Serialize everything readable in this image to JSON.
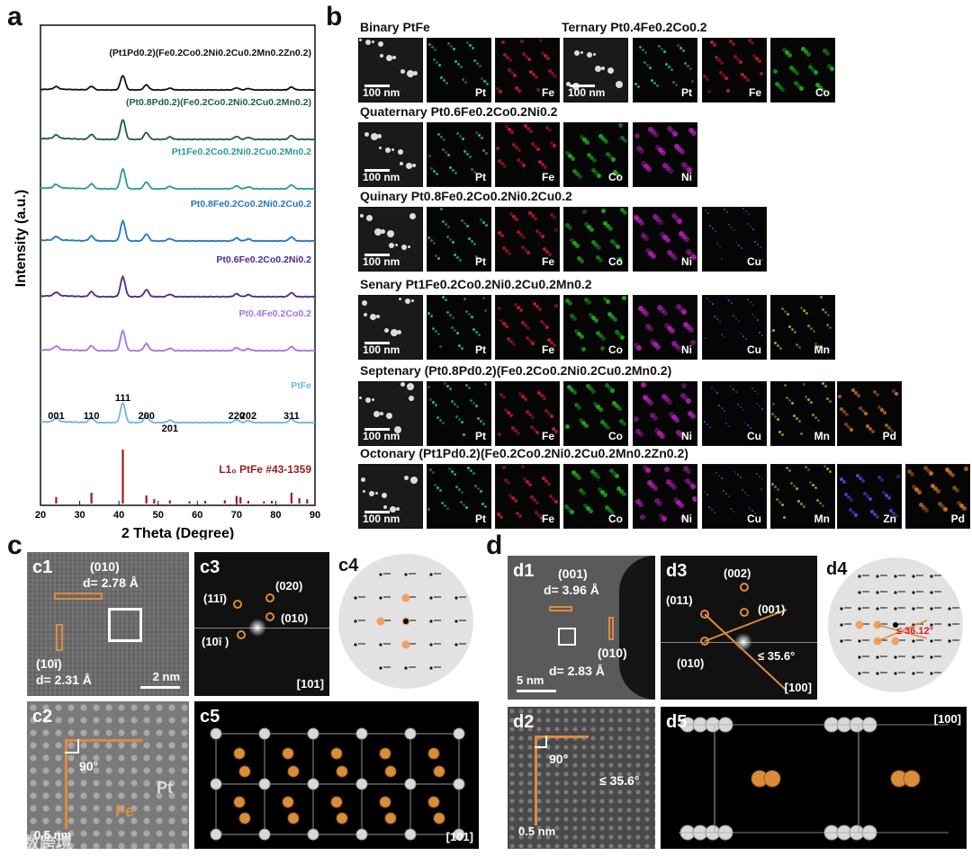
{
  "panels": {
    "a": "a",
    "b": "b",
    "c": "c",
    "d": "d"
  },
  "chart_data": {
    "type": "line",
    "xlabel": "2 Theta (Degree)",
    "ylabel": "Intensity (a.u.)",
    "xlim": [
      20,
      90
    ],
    "x_ticks": [
      "20",
      "30",
      "40",
      "50",
      "60",
      "70",
      "80",
      "90"
    ],
    "series": [
      {
        "name": "(Pt1Pd0.2)(Fe0.2Co0.2Ni0.2Cu0.2Mn0.2Zn0.2)",
        "color": "#111111"
      },
      {
        "name": "(Pt0.8Pd0.2)(Fe0.2Co0.2Ni0.2Cu0.2Mn0.2)",
        "color": "#1f5c4a"
      },
      {
        "name": "Pt1Fe0.2Co0.2Ni0.2Cu0.2Mn0.2",
        "color": "#2a9d8f"
      },
      {
        "name": "Pt0.8Fe0.2Co0.2Ni0.2Cu0.2",
        "color": "#2176c7"
      },
      {
        "name": "Pt0.6Fe0.2Co0.2Ni0.2",
        "color": "#4b2a8c"
      },
      {
        "name": "Pt0.4Fe0.2Co0.2",
        "color": "#a873e0"
      },
      {
        "name": "PtFe",
        "color": "#6fb3e6"
      }
    ],
    "peaks": [
      {
        "label": "001",
        "x": 24
      },
      {
        "label": "110",
        "x": 33
      },
      {
        "label": "111",
        "x": 41
      },
      {
        "label": "200",
        "x": 47
      },
      {
        "label": "201",
        "x": 53
      },
      {
        "label": "220",
        "x": 70
      },
      {
        "label": "202",
        "x": 73
      },
      {
        "label": "311",
        "x": 84
      }
    ],
    "reference": {
      "label": "L1₀ PtFe #43-1359",
      "color": "#9b1c1c",
      "x": [
        24,
        33,
        41,
        47,
        49,
        53,
        58,
        62,
        67,
        70,
        71,
        73,
        77,
        79,
        84,
        86,
        88
      ],
      "y": [
        0.12,
        0.2,
        1.0,
        0.15,
        0.08,
        0.06,
        0.04,
        0.05,
        0.06,
        0.14,
        0.12,
        0.05,
        0.04,
        0.05,
        0.2,
        0.1,
        0.08
      ]
    }
  },
  "rows": [
    {
      "title": "Binary PtFe",
      "scale": "100 nm",
      "elements": [
        "Pt",
        "Fe"
      ]
    },
    {
      "title": "Ternary Pt0.4Fe0.2Co0.2",
      "scale": "100 nm",
      "elements": [
        "Pt",
        "Fe",
        "Co"
      ]
    },
    {
      "title": "Quaternary Pt0.6Fe0.2Co0.2Ni0.2",
      "scale": "100 nm",
      "elements": [
        "Pt",
        "Fe",
        "Co",
        "Ni"
      ]
    },
    {
      "title": "Quinary Pt0.8Fe0.2Co0.2Ni0.2Cu0.2",
      "scale": "100 nm",
      "elements": [
        "Pt",
        "Fe",
        "Co",
        "Ni",
        "Cu"
      ]
    },
    {
      "title": "Senary Pt1Fe0.2Co0.2Ni0.2Cu0.2Mn0.2",
      "scale": "100 nm",
      "elements": [
        "Pt",
        "Fe",
        "Co",
        "Ni",
        "Cu",
        "Mn"
      ]
    },
    {
      "title": "Septenary (Pt0.8Pd0.2)(Fe0.2Co0.2Ni0.2Cu0.2Mn0.2)",
      "scale": "100 nm",
      "elements": [
        "Pt",
        "Fe",
        "Co",
        "Ni",
        "Cu",
        "Mn",
        "Pd"
      ]
    },
    {
      "title": "Octonary (Pt1Pd0.2)(Fe0.2Co0.2Ni0.2Cu0.2Mn0.2Zn0.2)",
      "scale": "100 nm",
      "elements": [
        "Pt",
        "Fe",
        "Co",
        "Ni",
        "Cu",
        "Mn",
        "Zn",
        "Pd"
      ]
    }
  ],
  "element_colors": {
    "Pt": "#2fd0d0",
    "Fe": "#e02020",
    "Co": "#20c020",
    "Ni": "#c020c0",
    "Cu": "#2080ff",
    "Mn": "#c8c820",
    "Zn": "#8040ff",
    "Pd": "#e08020"
  },
  "c": {
    "c1": {
      "label": "c1",
      "plane1": "(010)",
      "d1": "d= 2.78 Å",
      "plane2": "(10ī)",
      "d2": "d= 2.31 Å",
      "scale": "2 nm"
    },
    "c2": {
      "label": "c2",
      "angle": "90°",
      "pt": "Pt",
      "fe": "Fe",
      "scale": "0.5 nm"
    },
    "c3": {
      "label": "c3",
      "spot1": "(11ī)",
      "spot2": "(020)",
      "spot3": "(010)",
      "spot4": "(10ī )",
      "axis": "[101]"
    },
    "c4": {
      "label": "c4"
    },
    "c5": {
      "label": "c5",
      "axis": "[101]"
    }
  },
  "d": {
    "d1": {
      "label": "d1",
      "plane1": "(001)",
      "d1": "d= 3.96 Å",
      "plane2": "(010)",
      "d2": "d= 2.83 Å",
      "scale": "5 nm"
    },
    "d2": {
      "label": "d2",
      "angle": "90°",
      "angle2": "≤ 35.6°",
      "scale": "0.5 nm"
    },
    "d3": {
      "label": "d3",
      "spot1": "(002)",
      "spot2": "(011)",
      "spot3": "(001)",
      "spot4": "(010)",
      "angle": "≤ 35.6°",
      "axis": "[100]"
    },
    "d4": {
      "label": "d4",
      "angle": "≤ 36.12°"
    },
    "d5": {
      "label": "d5",
      "axis": "[100]"
    }
  },
  "watermark": "大数跨境"
}
